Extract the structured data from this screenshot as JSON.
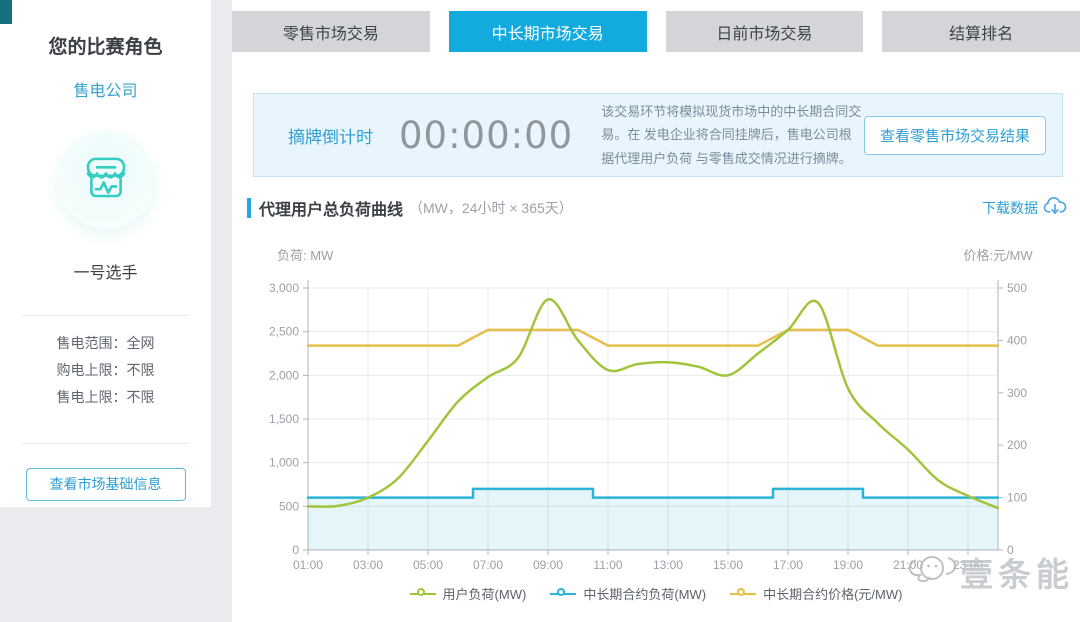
{
  "sidebar": {
    "title": "您的比赛角色",
    "role": "售电公司",
    "player": "一号选手",
    "info": [
      {
        "label": "售电范围：",
        "value": "全网"
      },
      {
        "label": "购电上限：",
        "value": "不限"
      },
      {
        "label": "售电上限：",
        "value": "不限"
      }
    ],
    "button": "查看市场基础信息"
  },
  "tabs": [
    {
      "label": "零售市场交易",
      "active": false
    },
    {
      "label": "中长期市场交易",
      "active": true
    },
    {
      "label": "日前市场交易",
      "active": false
    },
    {
      "label": "结算排名",
      "active": false
    }
  ],
  "banner": {
    "countdown_label": "摘牌倒计时",
    "countdown_value": "00:00:00",
    "description": "该交易环节将模拟现货市场中的中长期合同交易。在 发电企业将合同挂牌后，售电公司根据代理用户负荷 与零售成交情况进行摘牌。",
    "button": "查看零售市场交易结果"
  },
  "section": {
    "title": "代理用户总负荷曲线",
    "subtitle": "（MW，24小时 × 365天）",
    "download_label": "下载数据"
  },
  "watermark": "壹条能",
  "colors": {
    "active_tab": "#13abdd",
    "accent_blue": "#2f9fd4",
    "user_load": "#a0c53a",
    "contract_load": "#29b4d8",
    "contract_price": "#e3c04b",
    "grid": "#e9e9e9",
    "axis": "#b0b4b9",
    "tick_text": "#9ba1a8"
  },
  "chart_data": {
    "type": "line",
    "x": [
      "01:00",
      "02:00",
      "03:00",
      "04:00",
      "05:00",
      "06:00",
      "07:00",
      "08:00",
      "09:00",
      "10:00",
      "11:00",
      "12:00",
      "13:00",
      "14:00",
      "15:00",
      "16:00",
      "17:00",
      "18:00",
      "19:00",
      "20:00",
      "21:00",
      "22:00",
      "23:00",
      "24:00"
    ],
    "x_tick_every": 2,
    "left_axis": {
      "label": "负荷: MW",
      "min": 0,
      "max": 3000,
      "interval": 500
    },
    "right_axis": {
      "label": "价格:元/MW",
      "min": 0,
      "max": 500,
      "interval": 100
    },
    "grid": true,
    "legend_position": "bottom",
    "series": [
      {
        "name": "用户负荷(MW)",
        "axis": "left",
        "style": "smooth",
        "color": "#a0c53a",
        "values": [
          500,
          505,
          600,
          820,
          1250,
          1700,
          1980,
          2200,
          2870,
          2400,
          2060,
          2130,
          2150,
          2100,
          2000,
          2250,
          2520,
          2830,
          1850,
          1450,
          1150,
          800,
          620,
          480
        ]
      },
      {
        "name": "中长期合约负荷(MW)",
        "axis": "left",
        "style": "step",
        "color": "#29b4d8",
        "area": true,
        "values": [
          600,
          600,
          600,
          600,
          600,
          600,
          700,
          700,
          700,
          700,
          600,
          600,
          600,
          600,
          600,
          600,
          700,
          700,
          700,
          600,
          600,
          600,
          600,
          600
        ]
      },
      {
        "name": "中长期合约价格(元/MW)",
        "axis": "right",
        "style": "line",
        "color": "#e3c04b",
        "values": [
          390,
          390,
          390,
          390,
          390,
          390,
          420,
          420,
          420,
          420,
          390,
          390,
          390,
          390,
          390,
          390,
          420,
          420,
          420,
          390,
          390,
          390,
          390,
          390
        ]
      }
    ]
  }
}
